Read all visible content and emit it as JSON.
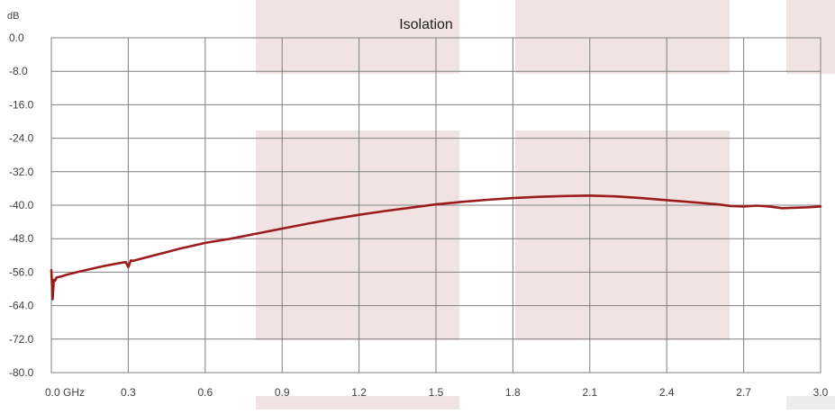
{
  "chart_data": {
    "type": "line",
    "title": "Isolation",
    "ylabel": "dB",
    "xunit": "GHz",
    "xlim": [
      0,
      3.0
    ],
    "ylim": [
      -80,
      0
    ],
    "grid": true,
    "legend": "none",
    "xticks": [
      "0.0",
      "0.3",
      "0.6",
      "0.9",
      "1.2",
      "1.5",
      "1.8",
      "2.1",
      "2.4",
      "2.7",
      "3.0"
    ],
    "xtick_values": [
      0,
      0.3,
      0.6,
      0.9,
      1.2,
      1.5,
      1.8,
      2.1,
      2.4,
      2.7,
      3.0
    ],
    "yticks": [
      "0.0",
      "-8.0",
      "-16.0",
      "-24.0",
      "-32.0",
      "-40.0",
      "-48.0",
      "-56.0",
      "-64.0",
      "-72.0",
      "-80.0"
    ],
    "ytick_values": [
      0,
      -8,
      -16,
      -24,
      -32,
      -40,
      -48,
      -56,
      -64,
      -72,
      -80
    ],
    "series": [
      {
        "color": "#9b1c1c",
        "x": [
          0.0,
          0.005,
          0.01,
          0.015,
          0.02,
          0.04,
          0.06,
          0.1,
          0.15,
          0.2,
          0.25,
          0.29,
          0.3,
          0.31,
          0.32,
          0.35,
          0.4,
          0.45,
          0.5,
          0.55,
          0.6,
          0.7,
          0.8,
          0.9,
          1.0,
          1.1,
          1.2,
          1.3,
          1.4,
          1.5,
          1.6,
          1.7,
          1.8,
          1.9,
          2.0,
          2.1,
          2.2,
          2.3,
          2.4,
          2.5,
          2.6,
          2.65,
          2.7,
          2.75,
          2.8,
          2.85,
          2.9,
          2.95,
          3.0
        ],
        "y": [
          -55.5,
          -62.5,
          -57.8,
          -58.0,
          -57.3,
          -57.0,
          -56.6,
          -56.0,
          -55.3,
          -54.6,
          -54.0,
          -53.6,
          -54.8,
          -53.2,
          -53.3,
          -52.8,
          -52.0,
          -51.2,
          -50.4,
          -49.7,
          -49.0,
          -48.0,
          -46.8,
          -45.6,
          -44.4,
          -43.3,
          -42.3,
          -41.4,
          -40.6,
          -39.8,
          -39.2,
          -38.7,
          -38.3,
          -38.0,
          -37.8,
          -37.7,
          -37.9,
          -38.3,
          -38.8,
          -39.3,
          -39.8,
          -40.2,
          -40.3,
          -40.1,
          -40.3,
          -40.7,
          -40.6,
          -40.5,
          -40.3
        ]
      }
    ]
  }
}
